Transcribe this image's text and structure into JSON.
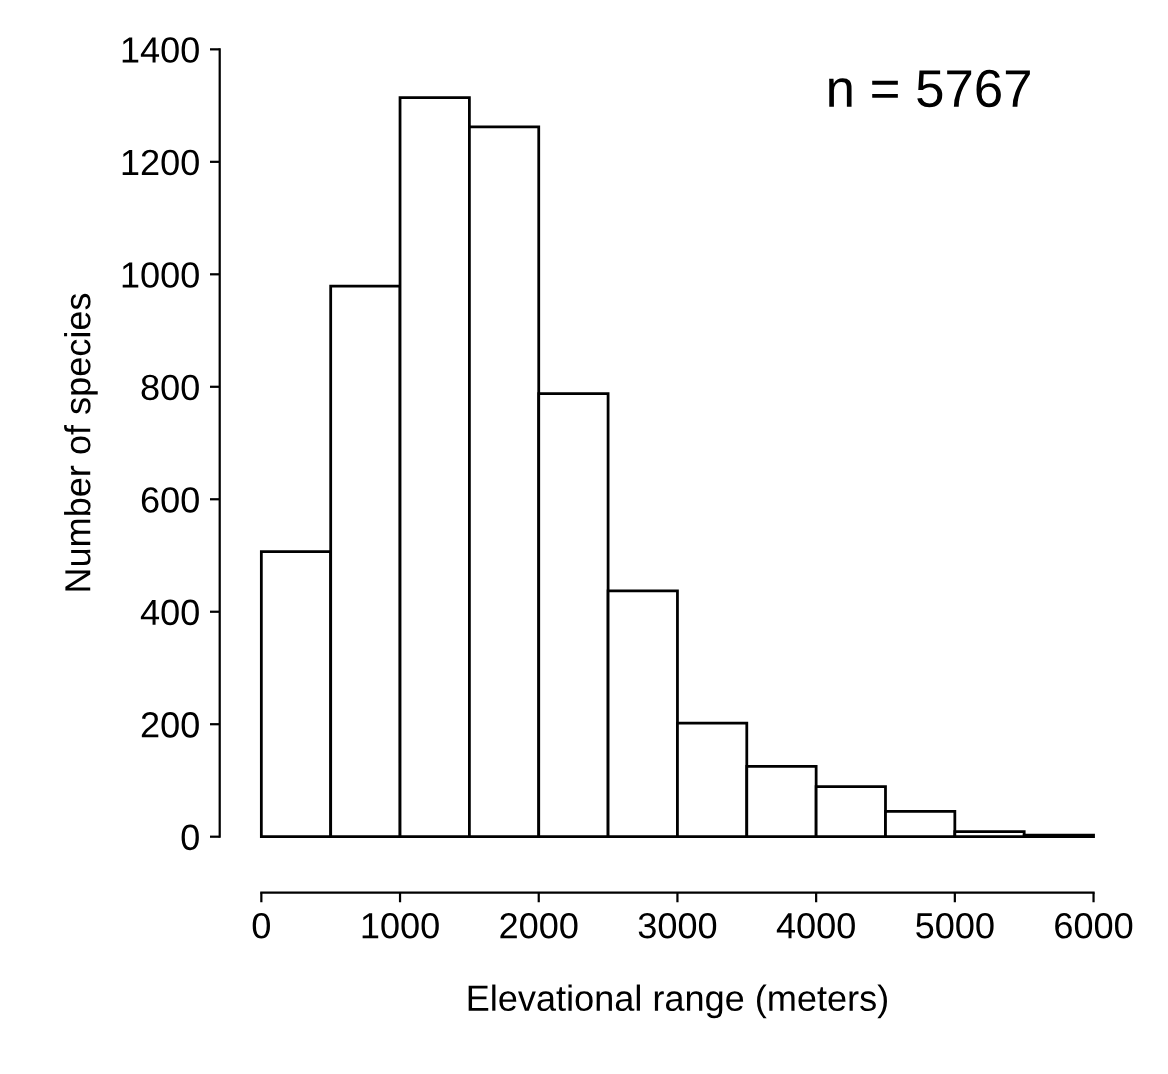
{
  "chart_data": {
    "type": "histogram",
    "xlabel": "Elevational range (meters)",
    "ylabel": "Number of species",
    "bins": [
      0,
      500,
      1000,
      1500,
      2000,
      2500,
      3000,
      3500,
      4000,
      4500,
      5000,
      5500,
      6000
    ],
    "values": [
      507,
      979,
      1314,
      1262,
      788,
      437,
      202,
      125,
      89,
      45,
      9,
      3
    ],
    "color": "#ffffff",
    "xlim": [
      0,
      6000
    ],
    "xticks": [
      0,
      1000,
      2000,
      3000,
      4000,
      5000,
      6000
    ],
    "ylim": [
      0,
      1400
    ],
    "yticks": [
      0,
      200,
      400,
      600,
      800,
      1000,
      1200,
      1400
    ],
    "annotations": [
      "n = 5767"
    ],
    "grid": false
  }
}
